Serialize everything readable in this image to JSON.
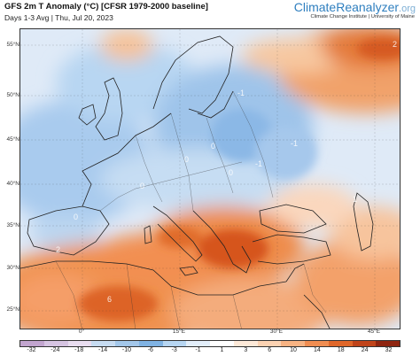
{
  "header": {
    "title": "GFS 2m T Anomaly (°C) [CFSR 1979-2000 baseline]",
    "subtitle": "Days 1-3 Avg | Thu, Jul 20, 2023",
    "brand_main": "ClimateReanalyzer",
    "brand_suffix": ".org",
    "brand_sub": "Climate Change Institute | University of Maine"
  },
  "map": {
    "lat_labels": [
      "55°N",
      "50°N",
      "45°N",
      "40°N",
      "35°N",
      "30°N",
      "25°N"
    ],
    "lon_labels": [
      "0°",
      "15°E",
      "30°E",
      "45°E"
    ],
    "contour_numbers": [
      "-1",
      "0",
      "-1",
      "0",
      "0",
      "-1",
      "0",
      "1",
      "0",
      "2",
      "2",
      "6"
    ]
  },
  "colorbar": {
    "labels": [
      "-32",
      "-24",
      "-18",
      "-14",
      "-10",
      "-6",
      "-3",
      "-1",
      "1",
      "3",
      "6",
      "10",
      "14",
      "18",
      "24",
      "32"
    ],
    "colors": [
      "#c2a5cf",
      "#d6c4e2",
      "#e9ddf0",
      "#c7dcf2",
      "#a3c7ea",
      "#80b3e3",
      "#b7d6f2",
      "#e2eefa",
      "#ffffff",
      "#fde9d8",
      "#fbd2b2",
      "#f7b383",
      "#f08d51",
      "#e0672a",
      "#c0441a",
      "#8f2510"
    ],
    "type": "temperature-anomaly"
  }
}
